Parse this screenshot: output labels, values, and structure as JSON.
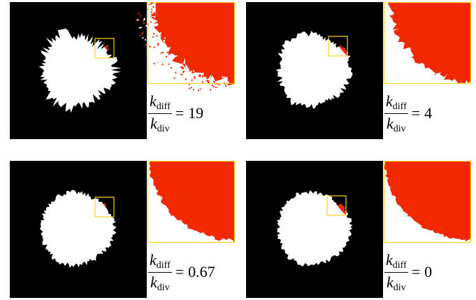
{
  "panels": [
    {
      "numerator": "k",
      "numerator_sub": "diff",
      "denominator": "k",
      "denominator_sub": "div",
      "relation": "=",
      "value": "19"
    },
    {
      "numerator": "k",
      "numerator_sub": "diff",
      "denominator": "k",
      "denominator_sub": "div",
      "relation": "=",
      "value": "4"
    },
    {
      "numerator": "k",
      "numerator_sub": "diff",
      "denominator": "k",
      "denominator_sub": "div",
      "relation": "=",
      "value": "0.67"
    },
    {
      "numerator": "k",
      "numerator_sub": "diff",
      "denominator": "k",
      "denominator_sub": "div",
      "relation": "=",
      "value": "0"
    }
  ]
}
